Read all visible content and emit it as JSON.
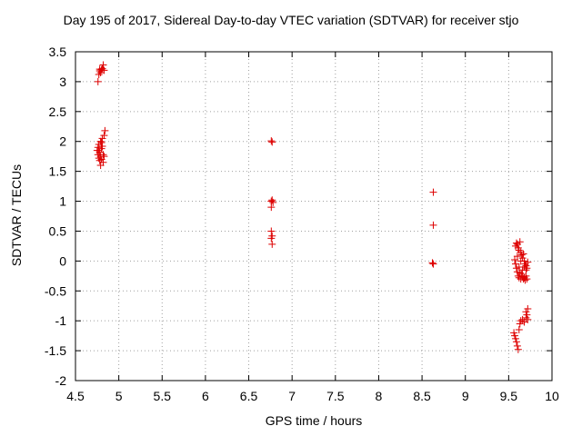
{
  "chart_data": {
    "type": "scatter",
    "title": "Day 195 of 2017, Sidereal Day-to-day VTEC variation (SDTVAR) for receiver stjo",
    "xlabel": "GPS time / hours",
    "ylabel": "SDTVAR / TECUs",
    "xlim": [
      4.5,
      10
    ],
    "ylim": [
      -2,
      3.5
    ],
    "xticks": [
      4.5,
      5,
      5.5,
      6,
      6.5,
      7,
      7.5,
      8,
      8.5,
      9,
      9.5,
      10
    ],
    "yticks": [
      -2,
      -1.5,
      -1,
      -0.5,
      0,
      0.5,
      1,
      1.5,
      2,
      2.5,
      3,
      3.5
    ],
    "xtick_labels": [
      "4.5",
      "5",
      "5.5",
      "6",
      "6.5",
      "7",
      "7.5",
      "8",
      "8.5",
      "9",
      "9.5",
      "10"
    ],
    "ytick_labels": [
      "-2",
      "-1.5",
      "-1",
      "-0.5",
      "0",
      "0.5",
      "1",
      "1.5",
      "2",
      "2.5",
      "3",
      "3.5"
    ],
    "grid": true,
    "marker_color": "#dd0000",
    "series": [
      {
        "name": "SDTVAR",
        "points": [
          [
            4.76,
            3.0
          ],
          [
            4.77,
            3.12
          ],
          [
            4.78,
            3.18
          ],
          [
            4.79,
            3.15
          ],
          [
            4.8,
            3.2
          ],
          [
            4.81,
            3.22
          ],
          [
            4.82,
            3.28
          ],
          [
            4.83,
            3.19
          ],
          [
            4.78,
            3.21
          ],
          [
            4.75,
            1.85
          ],
          [
            4.76,
            1.9
          ],
          [
            4.76,
            1.78
          ],
          [
            4.77,
            1.72
          ],
          [
            4.77,
            1.95
          ],
          [
            4.78,
            1.68
          ],
          [
            4.78,
            1.82
          ],
          [
            4.79,
            2.0
          ],
          [
            4.79,
            1.75
          ],
          [
            4.8,
            1.88
          ],
          [
            4.8,
            1.7
          ],
          [
            4.81,
            1.92
          ],
          [
            4.81,
            2.05
          ],
          [
            4.82,
            1.78
          ],
          [
            4.82,
            1.65
          ],
          [
            4.83,
            2.1
          ],
          [
            4.84,
            2.18
          ],
          [
            4.79,
            1.6
          ],
          [
            4.77,
            1.85
          ],
          [
            4.8,
            1.98
          ],
          [
            4.83,
            1.75
          ],
          [
            6.76,
            2.01
          ],
          [
            6.77,
            1.99
          ],
          [
            6.76,
            1.0
          ],
          [
            6.77,
            1.02
          ],
          [
            6.78,
            0.98
          ],
          [
            6.76,
            0.9
          ],
          [
            6.76,
            0.5
          ],
          [
            6.77,
            0.42
          ],
          [
            6.76,
            0.38
          ],
          [
            6.77,
            0.28
          ],
          [
            8.63,
            1.15
          ],
          [
            8.63,
            0.6
          ],
          [
            8.62,
            -0.03
          ],
          [
            8.63,
            -0.05
          ],
          [
            9.58,
            0.25
          ],
          [
            9.59,
            0.3
          ],
          [
            9.6,
            0.28
          ],
          [
            9.61,
            0.22
          ],
          [
            9.62,
            0.18
          ],
          [
            9.63,
            0.32
          ],
          [
            9.64,
            0.15
          ],
          [
            9.65,
            0.1
          ],
          [
            9.66,
            0.05
          ],
          [
            9.67,
            0.12
          ],
          [
            9.68,
            0.0
          ],
          [
            9.69,
            -0.05
          ],
          [
            9.7,
            -0.08
          ],
          [
            9.71,
            -0.12
          ],
          [
            9.72,
            -0.02
          ],
          [
            9.58,
            -0.05
          ],
          [
            9.59,
            -0.12
          ],
          [
            9.6,
            -0.18
          ],
          [
            9.61,
            -0.25
          ],
          [
            9.62,
            -0.28
          ],
          [
            9.63,
            -0.2
          ],
          [
            9.64,
            -0.3
          ],
          [
            9.65,
            -0.22
          ],
          [
            9.66,
            -0.26
          ],
          [
            9.67,
            -0.3
          ],
          [
            9.68,
            -0.28
          ],
          [
            9.69,
            -0.32
          ],
          [
            9.7,
            -0.25
          ],
          [
            9.71,
            -0.3
          ],
          [
            9.57,
            0.02
          ],
          [
            9.6,
            0.08
          ],
          [
            9.62,
            -0.1
          ],
          [
            9.64,
            0.0
          ],
          [
            9.66,
            -0.15
          ],
          [
            9.68,
            -0.1
          ],
          [
            9.7,
            -0.15
          ],
          [
            9.56,
            -1.2
          ],
          [
            9.57,
            -1.25
          ],
          [
            9.58,
            -1.3
          ],
          [
            9.59,
            -1.35
          ],
          [
            9.6,
            -1.42
          ],
          [
            9.61,
            -1.48
          ],
          [
            9.62,
            -1.15
          ],
          [
            9.63,
            -1.05
          ],
          [
            9.64,
            -1.0
          ],
          [
            9.66,
            -0.98
          ],
          [
            9.68,
            -1.02
          ],
          [
            9.7,
            -0.95
          ],
          [
            9.72,
            -0.98
          ],
          [
            9.7,
            -0.85
          ],
          [
            9.71,
            -0.9
          ],
          [
            9.72,
            -0.8
          ]
        ]
      }
    ]
  }
}
